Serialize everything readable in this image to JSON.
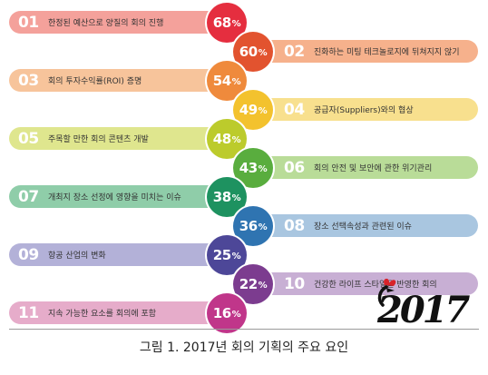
{
  "chart_data": {
    "type": "bar",
    "unit": "%",
    "items": [
      {
        "rank": "01",
        "label": "한정된 예산으로 양질의 회의 진행",
        "value": 68,
        "bar_color": "#f4a19b",
        "circle_color": "#e52e3f"
      },
      {
        "rank": "02",
        "label": "진화하는 미팅 테크놀로지에 뒤쳐지지 않기",
        "value": 60,
        "bar_color": "#f6b18c",
        "circle_color": "#e2532f"
      },
      {
        "rank": "03",
        "label": "회의 투자수익률(ROI) 증명",
        "value": 54,
        "bar_color": "#f7c49b",
        "circle_color": "#ef8a3c"
      },
      {
        "rank": "04",
        "label": "공급자(Suppliers)와의 협상",
        "value": 49,
        "bar_color": "#f8e08e",
        "circle_color": "#f3c22e"
      },
      {
        "rank": "05",
        "label": "주목할 만한 회의 콘텐츠 개발",
        "value": 48,
        "bar_color": "#dfe68e",
        "circle_color": "#bccb2c"
      },
      {
        "rank": "06",
        "label": "회의 안전 및 보안에 관한 위기관리",
        "value": 43,
        "bar_color": "#b9dc98",
        "circle_color": "#59ad3e"
      },
      {
        "rank": "07",
        "label": "개최지 장소 선정에 영향을 미치는 이슈",
        "value": 38,
        "bar_color": "#8fcda9",
        "circle_color": "#1e9260"
      },
      {
        "rank": "08",
        "label": "장소 선택속성과 관련된 이슈",
        "value": 36,
        "bar_color": "#a9c6e0",
        "circle_color": "#2f74b1"
      },
      {
        "rank": "09",
        "label": "항공 산업의 변화",
        "value": 25,
        "bar_color": "#b3b1d8",
        "circle_color": "#4d4798"
      },
      {
        "rank": "10",
        "label": "건강한 라이프 스타일을 반영한 회의",
        "value": 22,
        "bar_color": "#c8afd4",
        "circle_color": "#7c3c8f"
      },
      {
        "rank": "11",
        "label": "지속 가능한 요소를 회의에 포함",
        "value": 16,
        "bar_color": "#e6acca",
        "circle_color": "#c0368a"
      }
    ]
  },
  "decoration": {
    "logo_text": "2017",
    "logo_icon": "rooster-icon"
  },
  "caption": "그림 1. 2017년 회의 기획의 주요 요인"
}
